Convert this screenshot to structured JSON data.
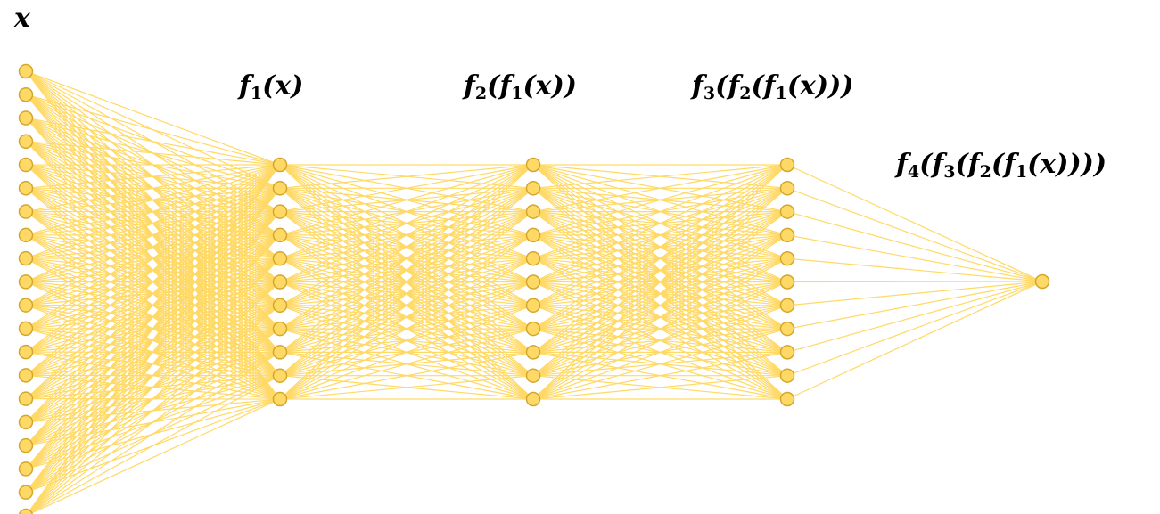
{
  "diagram": {
    "type": "fully-connected neural network",
    "edge_color": "#FFD966",
    "node_fill": "#FFD966",
    "node_stroke": "#D4A72C",
    "layers": [
      {
        "id": "input",
        "neurons": 20,
        "label_parts": [
          "x"
        ]
      },
      {
        "id": "hidden1",
        "neurons": 11,
        "label_parts": [
          "f",
          "1",
          "(x)"
        ]
      },
      {
        "id": "hidden2",
        "neurons": 11,
        "label_parts": [
          "f",
          "2",
          "(f",
          "1",
          "(x))"
        ]
      },
      {
        "id": "hidden3",
        "neurons": 11,
        "label_parts": [
          "f",
          "3",
          "(f",
          "2",
          "(f",
          "1",
          "(x)))"
        ]
      },
      {
        "id": "output",
        "neurons": 1,
        "label_parts": [
          "f",
          "4",
          "(f",
          "3",
          "(f",
          "2",
          "(f",
          "1",
          "(x))))"
        ]
      }
    ]
  }
}
